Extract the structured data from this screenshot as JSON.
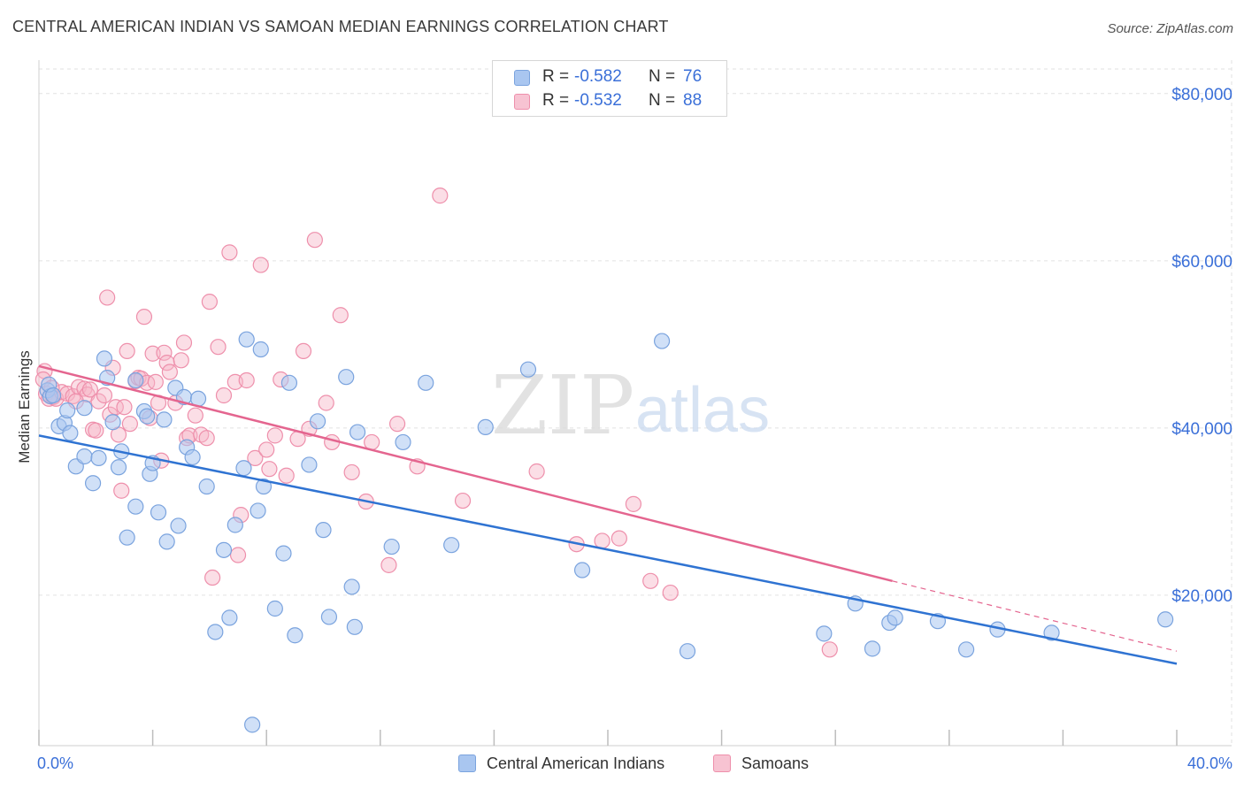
{
  "title": "CENTRAL AMERICAN INDIAN VS SAMOAN MEDIAN EARNINGS CORRELATION CHART",
  "source": "Source: ZipAtlas.com",
  "watermark": {
    "zip": "ZIP",
    "atlas": "atlas"
  },
  "legend": {
    "r_label": "R =",
    "n_label": "N =",
    "series": [
      {
        "r": "-0.582",
        "n": "76"
      },
      {
        "r": "-0.532",
        "n": "88"
      }
    ]
  },
  "bottom_legend": [
    "Central American Indians",
    "Samoans"
  ],
  "colors": {
    "blue_fill": "#a9c6f0",
    "blue_stroke": "#7aa3de",
    "blue_line": "#2f73d2",
    "pink_fill": "#f7b6c8",
    "pink_stroke": "#ee8fab",
    "pink_line": "#e4658f",
    "tick_label": "#3a6fd8",
    "grid": "#e2e2e2"
  },
  "chart_data": {
    "type": "scatter",
    "title": "CENTRAL AMERICAN INDIAN VS SAMOAN MEDIAN EARNINGS CORRELATION CHART",
    "xlabel": "",
    "ylabel": "Median Earnings",
    "xlim": [
      0,
      40
    ],
    "ylim": [
      2000,
      84000
    ],
    "x_tick_labels": [
      "0.0%",
      "40.0%"
    ],
    "y_ticks": [
      20000,
      40000,
      60000,
      80000
    ],
    "y_tick_labels": [
      "$20,000",
      "$40,000",
      "$60,000",
      "$80,000"
    ],
    "grid": true,
    "legend_position": "top-center",
    "series": [
      {
        "name": "Central American Indians",
        "points": [
          [
            0.3,
            44500
          ],
          [
            0.4,
            43800
          ],
          [
            0.7,
            40200
          ],
          [
            0.9,
            40600
          ],
          [
            1.0,
            42100
          ],
          [
            1.1,
            39400
          ],
          [
            1.3,
            35400
          ],
          [
            1.6,
            36600
          ],
          [
            1.6,
            42400
          ],
          [
            1.9,
            33400
          ],
          [
            2.1,
            36400
          ],
          [
            2.3,
            48300
          ],
          [
            2.4,
            46000
          ],
          [
            2.6,
            40700
          ],
          [
            2.8,
            35300
          ],
          [
            2.9,
            37200
          ],
          [
            3.1,
            26900
          ],
          [
            3.4,
            30600
          ],
          [
            3.4,
            45700
          ],
          [
            3.7,
            42000
          ],
          [
            3.8,
            41400
          ],
          [
            3.9,
            34500
          ],
          [
            4.0,
            35800
          ],
          [
            4.2,
            29900
          ],
          [
            4.4,
            41000
          ],
          [
            4.5,
            26400
          ],
          [
            4.8,
            44800
          ],
          [
            4.9,
            28300
          ],
          [
            5.1,
            43700
          ],
          [
            5.2,
            37700
          ],
          [
            5.4,
            36500
          ],
          [
            5.6,
            43500
          ],
          [
            5.9,
            33000
          ],
          [
            6.2,
            15600
          ],
          [
            6.5,
            25400
          ],
          [
            6.7,
            17300
          ],
          [
            6.9,
            28400
          ],
          [
            7.2,
            35200
          ],
          [
            7.3,
            50600
          ],
          [
            7.5,
            4500
          ],
          [
            7.7,
            30100
          ],
          [
            7.8,
            49400
          ],
          [
            7.9,
            33000
          ],
          [
            8.3,
            18400
          ],
          [
            8.6,
            25000
          ],
          [
            8.8,
            45400
          ],
          [
            9.0,
            15200
          ],
          [
            9.5,
            35600
          ],
          [
            9.8,
            40800
          ],
          [
            10.0,
            27800
          ],
          [
            10.2,
            17400
          ],
          [
            10.8,
            46100
          ],
          [
            11.0,
            21000
          ],
          [
            11.1,
            16200
          ],
          [
            11.2,
            39500
          ],
          [
            12.4,
            25800
          ],
          [
            12.8,
            38300
          ],
          [
            13.6,
            45400
          ],
          [
            14.5,
            26000
          ],
          [
            15.7,
            40100
          ],
          [
            17.2,
            47000
          ],
          [
            19.1,
            23000
          ],
          [
            21.9,
            50400
          ],
          [
            22.8,
            13300
          ],
          [
            27.6,
            15400
          ],
          [
            28.7,
            19000
          ],
          [
            29.3,
            13600
          ],
          [
            29.9,
            16700
          ],
          [
            30.1,
            17300
          ],
          [
            31.6,
            16900
          ],
          [
            32.6,
            13500
          ],
          [
            33.7,
            15900
          ],
          [
            35.6,
            15500
          ],
          [
            39.6,
            17100
          ],
          [
            0.35,
            45200
          ],
          [
            0.5,
            43900
          ]
        ]
      },
      {
        "name": "Samoans",
        "points": [
          [
            0.2,
            46800
          ],
          [
            0.25,
            44100
          ],
          [
            0.35,
            43500
          ],
          [
            0.5,
            43700
          ],
          [
            0.6,
            43500
          ],
          [
            0.8,
            44300
          ],
          [
            1.0,
            44100
          ],
          [
            1.2,
            43800
          ],
          [
            1.4,
            44900
          ],
          [
            1.6,
            44700
          ],
          [
            1.7,
            44000
          ],
          [
            1.8,
            44600
          ],
          [
            1.9,
            39800
          ],
          [
            2.0,
            39700
          ],
          [
            2.1,
            43200
          ],
          [
            2.3,
            43900
          ],
          [
            2.4,
            55600
          ],
          [
            2.5,
            41600
          ],
          [
            2.6,
            47200
          ],
          [
            2.7,
            42500
          ],
          [
            2.8,
            39200
          ],
          [
            2.9,
            32500
          ],
          [
            3.0,
            42500
          ],
          [
            3.1,
            49200
          ],
          [
            3.2,
            40500
          ],
          [
            3.4,
            45600
          ],
          [
            3.5,
            46000
          ],
          [
            3.6,
            45900
          ],
          [
            3.7,
            53300
          ],
          [
            3.8,
            45400
          ],
          [
            3.9,
            41200
          ],
          [
            4.0,
            48900
          ],
          [
            4.1,
            45500
          ],
          [
            4.2,
            43000
          ],
          [
            4.3,
            36100
          ],
          [
            4.4,
            49000
          ],
          [
            4.5,
            47800
          ],
          [
            4.6,
            46700
          ],
          [
            4.8,
            43000
          ],
          [
            5.0,
            48100
          ],
          [
            5.1,
            50200
          ],
          [
            5.2,
            38800
          ],
          [
            5.3,
            39100
          ],
          [
            5.5,
            41500
          ],
          [
            5.7,
            39200
          ],
          [
            5.9,
            38800
          ],
          [
            6.0,
            55100
          ],
          [
            6.1,
            22100
          ],
          [
            6.3,
            49700
          ],
          [
            6.5,
            43900
          ],
          [
            6.7,
            61000
          ],
          [
            6.9,
            45500
          ],
          [
            7.0,
            24800
          ],
          [
            7.1,
            29600
          ],
          [
            7.3,
            45700
          ],
          [
            7.6,
            36400
          ],
          [
            7.8,
            59500
          ],
          [
            8.0,
            37400
          ],
          [
            8.1,
            35100
          ],
          [
            8.3,
            39100
          ],
          [
            8.5,
            45800
          ],
          [
            8.7,
            34300
          ],
          [
            9.1,
            38700
          ],
          [
            9.3,
            49200
          ],
          [
            9.5,
            39900
          ],
          [
            9.7,
            62500
          ],
          [
            10.1,
            43000
          ],
          [
            10.3,
            38300
          ],
          [
            10.6,
            53500
          ],
          [
            11.0,
            34700
          ],
          [
            11.5,
            31200
          ],
          [
            11.7,
            38300
          ],
          [
            12.3,
            23600
          ],
          [
            12.6,
            40500
          ],
          [
            13.3,
            35400
          ],
          [
            14.1,
            67800
          ],
          [
            14.9,
            31300
          ],
          [
            17.5,
            34800
          ],
          [
            18.9,
            26100
          ],
          [
            19.8,
            26500
          ],
          [
            20.4,
            26800
          ],
          [
            20.9,
            30900
          ],
          [
            21.5,
            21700
          ],
          [
            22.2,
            20300
          ],
          [
            27.8,
            13500
          ],
          [
            0.15,
            45800
          ],
          [
            0.45,
            44800
          ],
          [
            1.3,
            43200
          ]
        ]
      }
    ],
    "trend_lines": [
      {
        "series": "Central American Indians",
        "x": [
          0,
          40
        ],
        "y": [
          39100,
          11800
        ]
      },
      {
        "series": "Samoans",
        "x": [
          0,
          30
        ],
        "y": [
          47400,
          21700
        ],
        "dashed_extension_to": [
          40,
          13300
        ]
      }
    ]
  }
}
